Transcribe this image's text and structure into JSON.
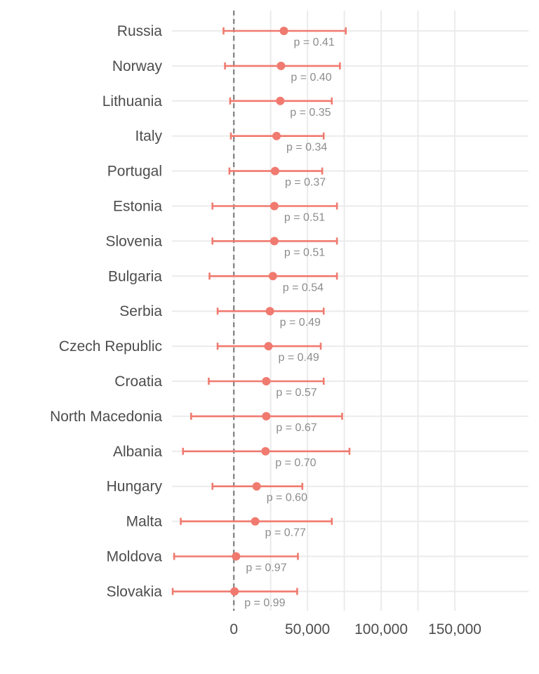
{
  "chart_data": {
    "type": "forest",
    "title": "",
    "xlabel": "",
    "ylabel": "",
    "xlim": [
      -42000,
      200000
    ],
    "x_ticks": [
      0,
      50000,
      100000,
      150000
    ],
    "x_tick_labels": [
      "0",
      "50,000",
      "100,000",
      "150,000"
    ],
    "reference_line": 0,
    "color": "#f07a6f",
    "rows": [
      {
        "country": "Russia",
        "estimate": 34000,
        "lower": -7000,
        "upper": 76000,
        "p_label": "p = 0.41"
      },
      {
        "country": "Norway",
        "estimate": 32000,
        "lower": -6000,
        "upper": 72000,
        "p_label": "p = 0.40"
      },
      {
        "country": "Lithuania",
        "estimate": 31500,
        "lower": -2500,
        "upper": 66500,
        "p_label": "p = 0.35"
      },
      {
        "country": "Italy",
        "estimate": 29000,
        "lower": -2000,
        "upper": 61000,
        "p_label": "p = 0.34"
      },
      {
        "country": "Portugal",
        "estimate": 28000,
        "lower": -3000,
        "upper": 60000,
        "p_label": "p = 0.37"
      },
      {
        "country": "Estonia",
        "estimate": 27500,
        "lower": -14500,
        "upper": 70000,
        "p_label": "p = 0.51"
      },
      {
        "country": "Slovenia",
        "estimate": 27500,
        "lower": -14500,
        "upper": 70000,
        "p_label": "p = 0.51"
      },
      {
        "country": "Bulgaria",
        "estimate": 26500,
        "lower": -16500,
        "upper": 70000,
        "p_label": "p = 0.54"
      },
      {
        "country": "Serbia",
        "estimate": 24500,
        "lower": -11000,
        "upper": 61000,
        "p_label": "p = 0.49"
      },
      {
        "country": "Czech Republic",
        "estimate": 23500,
        "lower": -11000,
        "upper": 59000,
        "p_label": "p = 0.49"
      },
      {
        "country": "Croatia",
        "estimate": 22000,
        "lower": -17000,
        "upper": 61000,
        "p_label": "p = 0.57"
      },
      {
        "country": "North Macedonia",
        "estimate": 22000,
        "lower": -29000,
        "upper": 73500,
        "p_label": "p = 0.67"
      },
      {
        "country": "Albania",
        "estimate": 21500,
        "lower": -34500,
        "upper": 78500,
        "p_label": "p = 0.70"
      },
      {
        "country": "Hungary",
        "estimate": 15500,
        "lower": -14500,
        "upper": 46500,
        "p_label": "p = 0.60"
      },
      {
        "country": "Malta",
        "estimate": 14500,
        "lower": -36000,
        "upper": 66500,
        "p_label": "p = 0.77"
      },
      {
        "country": "Moldova",
        "estimate": 1500,
        "lower": -40500,
        "upper": 43500,
        "p_label": "p = 0.97"
      },
      {
        "country": "Slovakia",
        "estimate": 500,
        "lower": -41500,
        "upper": 43000,
        "p_label": "p = 0.99"
      }
    ]
  }
}
